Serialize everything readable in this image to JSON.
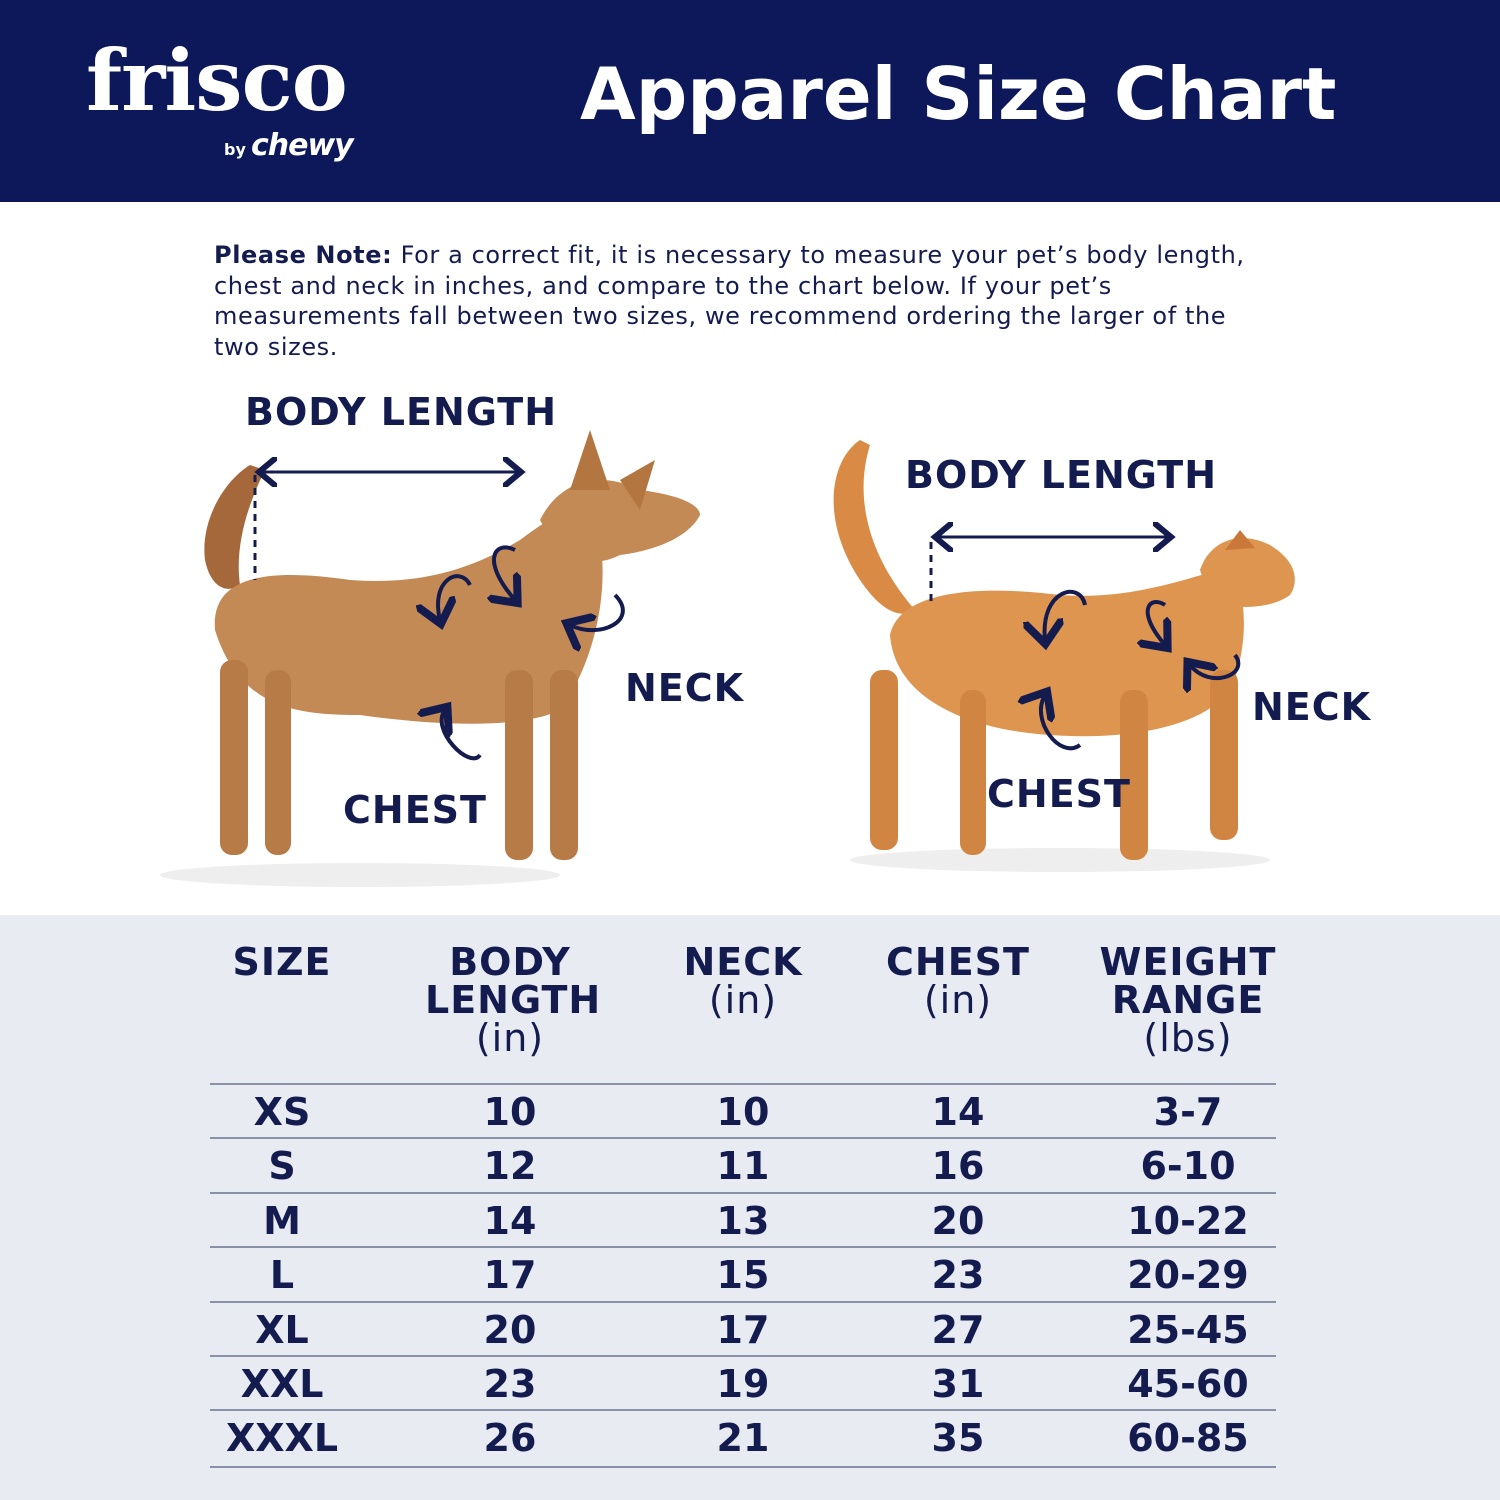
{
  "brand": {
    "name": "frisco",
    "by": "by",
    "parent": "chewy"
  },
  "header": {
    "title": "Apparel Size Chart"
  },
  "note": {
    "label": "Please Note:",
    "text": " For a correct fit, it is necessary to measure your pet’s body length, chest and neck in inches, and compare to the chart below. If your pet’s measurements fall between two sizes, we recommend ordering the larger of the two sizes."
  },
  "diagram": {
    "dog": {
      "body_length": "BODY LENGTH",
      "neck": "NECK",
      "chest": "CHEST"
    },
    "cat": {
      "body_length": "BODY LENGTH",
      "neck": "NECK",
      "chest": "CHEST"
    }
  },
  "colors": {
    "navy": "#0c185a",
    "text": "#141c4f",
    "table_bg": "#e8ecf2"
  },
  "table": {
    "headers": [
      {
        "title": "SIZE",
        "unit": ""
      },
      {
        "title": "BODY LENGTH",
        "unit": "(in)"
      },
      {
        "title": "NECK",
        "unit": "(in)"
      },
      {
        "title": "CHEST",
        "unit": "(in)"
      },
      {
        "title": "WEIGHT RANGE",
        "unit": "(lbs)"
      }
    ],
    "rows": [
      [
        "XS",
        "10",
        "10",
        "14",
        "3-7"
      ],
      [
        "S",
        "12",
        "11",
        "16",
        "6-10"
      ],
      [
        "M",
        "14",
        "13",
        "20",
        "10-22"
      ],
      [
        "L",
        "17",
        "15",
        "23",
        "20-29"
      ],
      [
        "XL",
        "20",
        "17",
        "27",
        "25-45"
      ],
      [
        "XXL",
        "23",
        "19",
        "31",
        "45-60"
      ],
      [
        "XXXL",
        "26",
        "21",
        "35",
        "60-85"
      ]
    ]
  }
}
